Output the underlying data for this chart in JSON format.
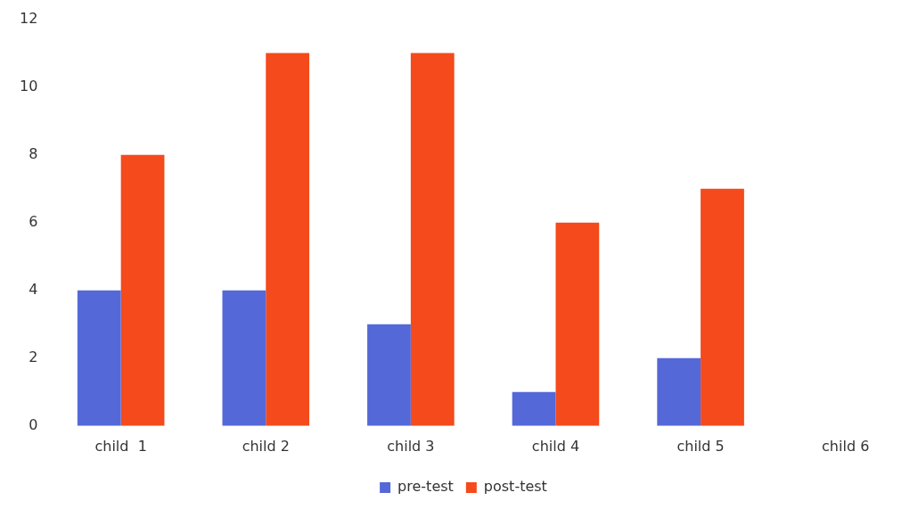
{
  "chart_data": {
    "type": "bar",
    "categories": [
      "child  1",
      "child 2",
      "child 3",
      "child 4",
      "child 5",
      "child 6"
    ],
    "series": [
      {
        "name": "pre-test",
        "color": "#5468d8",
        "values": [
          4,
          4,
          3,
          1,
          2,
          null
        ]
      },
      {
        "name": "post-test",
        "color": "#f44a1c",
        "values": [
          8,
          11,
          11,
          6,
          7,
          null
        ]
      }
    ],
    "ylim": [
      0,
      12
    ],
    "yticks": [
      0,
      2,
      4,
      6,
      8,
      10,
      12
    ],
    "legend": "bottom"
  }
}
